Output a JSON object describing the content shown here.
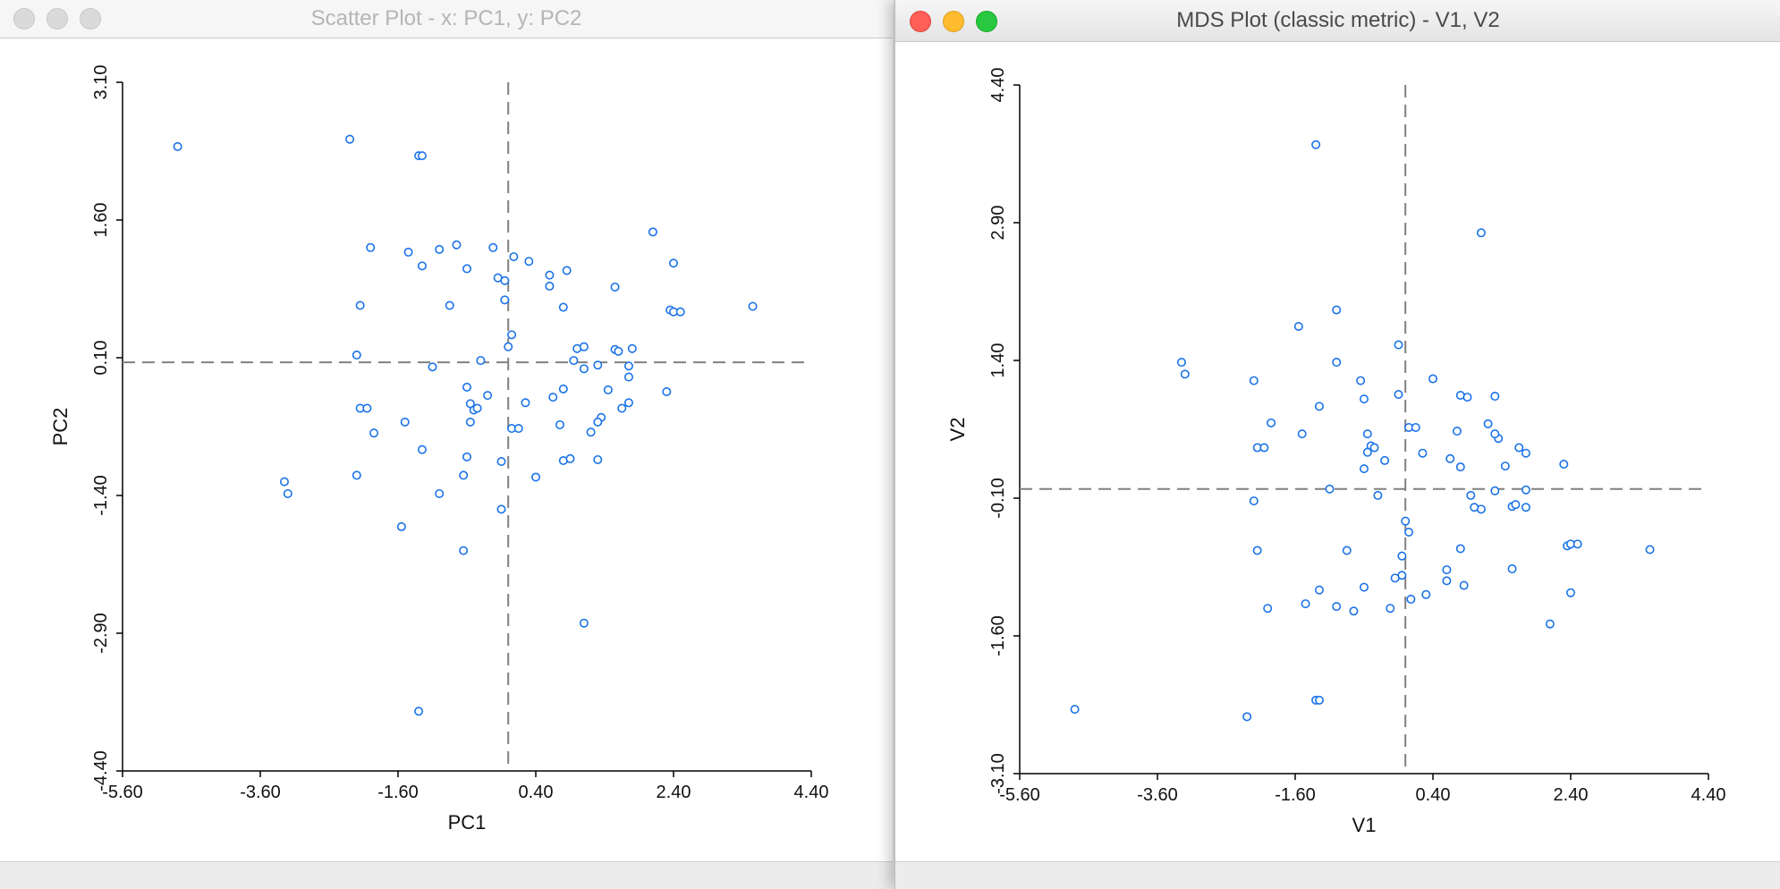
{
  "windows": {
    "left": {
      "title": "Scatter Plot - x: PC1, y: PC2"
    },
    "right": {
      "title": "MDS Plot (classic metric) - V1, V2"
    }
  },
  "colors": {
    "point": "#1a73e8",
    "axis": "#000000",
    "reference_line": "#808080"
  },
  "chart_data": [
    {
      "type": "scatter",
      "title": "Scatter Plot - x: PC1, y: PC2",
      "xlabel": "PC1",
      "ylabel": "PC2",
      "xlim": [
        -5.6,
        4.4
      ],
      "ylim": [
        -4.4,
        3.1
      ],
      "x_tick_labels": [
        "-5.60",
        "-3.60",
        "-1.60",
        "0.40",
        "2.40",
        "4.40"
      ],
      "y_tick_labels": [
        "-4.40",
        "-2.90",
        "-1.40",
        "0.10",
        "1.60",
        "3.10"
      ],
      "reference_lines": {
        "x": 0.0,
        "y": 0.05
      },
      "grid": false,
      "points": [
        [
          -4.8,
          2.4
        ],
        [
          -2.3,
          2.48
        ],
        [
          -1.3,
          2.3
        ],
        [
          -1.25,
          2.3
        ],
        [
          2.1,
          1.47
        ],
        [
          -2.0,
          1.3
        ],
        [
          -1.45,
          1.25
        ],
        [
          -1.0,
          1.28
        ],
        [
          -0.75,
          1.33
        ],
        [
          -0.22,
          1.3
        ],
        [
          0.08,
          1.2
        ],
        [
          0.3,
          1.15
        ],
        [
          2.4,
          1.13
        ],
        [
          -1.25,
          1.1
        ],
        [
          -0.6,
          1.07
        ],
        [
          -0.15,
          0.97
        ],
        [
          -0.05,
          0.94
        ],
        [
          0.6,
          1.0
        ],
        [
          0.85,
          1.05
        ],
        [
          0.6,
          0.88
        ],
        [
          1.55,
          0.87
        ],
        [
          -2.15,
          0.67
        ],
        [
          -0.85,
          0.67
        ],
        [
          -0.05,
          0.73
        ],
        [
          0.8,
          0.65
        ],
        [
          2.35,
          0.62
        ],
        [
          2.4,
          0.6
        ],
        [
          2.5,
          0.6
        ],
        [
          3.55,
          0.66
        ],
        [
          0.05,
          0.35
        ],
        [
          0.0,
          0.22
        ],
        [
          1.0,
          0.2
        ],
        [
          1.1,
          0.22
        ],
        [
          1.55,
          0.19
        ],
        [
          1.6,
          0.17
        ],
        [
          1.8,
          0.2
        ],
        [
          -2.2,
          0.13
        ],
        [
          0.95,
          0.07
        ],
        [
          -0.4,
          0.07
        ],
        [
          1.3,
          0.02
        ],
        [
          -1.1,
          0.0
        ],
        [
          1.1,
          -0.02
        ],
        [
          1.75,
          0.01
        ],
        [
          1.75,
          -0.11
        ],
        [
          -0.6,
          -0.22
        ],
        [
          0.8,
          -0.24
        ],
        [
          1.45,
          -0.25
        ],
        [
          2.3,
          -0.27
        ],
        [
          -0.3,
          -0.31
        ],
        [
          0.65,
          -0.33
        ],
        [
          -0.55,
          -0.4
        ],
        [
          -2.15,
          -0.45
        ],
        [
          -2.05,
          -0.45
        ],
        [
          0.25,
          -0.39
        ],
        [
          -0.5,
          -0.47
        ],
        [
          -0.45,
          -0.45
        ],
        [
          1.65,
          -0.45
        ],
        [
          1.75,
          -0.39
        ],
        [
          1.35,
          -0.55
        ],
        [
          1.3,
          -0.6
        ],
        [
          -1.5,
          -0.6
        ],
        [
          -0.55,
          -0.6
        ],
        [
          0.75,
          -0.63
        ],
        [
          0.05,
          -0.67
        ],
        [
          0.15,
          -0.67
        ],
        [
          -1.95,
          -0.72
        ],
        [
          1.2,
          -0.71
        ],
        [
          -1.25,
          -0.9
        ],
        [
          -0.6,
          -0.98
        ],
        [
          0.8,
          -1.02
        ],
        [
          0.9,
          -1.0
        ],
        [
          1.3,
          -1.01
        ],
        [
          -0.1,
          -1.03
        ],
        [
          -2.2,
          -1.18
        ],
        [
          -0.65,
          -1.18
        ],
        [
          0.4,
          -1.2
        ],
        [
          -1.0,
          -1.38
        ],
        [
          -3.25,
          -1.25
        ],
        [
          -3.2,
          -1.38
        ],
        [
          -0.1,
          -1.55
        ],
        [
          -1.55,
          -1.74
        ],
        [
          -0.65,
          -2.0
        ],
        [
          1.1,
          -2.79
        ],
        [
          -1.3,
          -3.75
        ]
      ]
    },
    {
      "type": "scatter",
      "title": "MDS Plot (classic metric) - V1, V2",
      "xlabel": "V1",
      "ylabel": "V2",
      "xlim": [
        -5.6,
        4.4
      ],
      "ylim": [
        -3.1,
        4.4
      ],
      "x_tick_labels": [
        "-5.60",
        "-3.60",
        "-1.60",
        "0.40",
        "2.40",
        "4.40"
      ],
      "y_tick_labels": [
        "-3.10",
        "-1.60",
        "-0.10",
        "1.40",
        "2.90",
        "4.40"
      ],
      "reference_lines": {
        "x": 0.0,
        "y": 0.0
      },
      "grid": false,
      "points": [
        [
          -1.3,
          3.75
        ],
        [
          1.1,
          2.79
        ],
        [
          -1.0,
          1.95
        ],
        [
          -1.55,
          1.77
        ],
        [
          -0.1,
          1.57
        ],
        [
          -3.25,
          1.38
        ],
        [
          -3.2,
          1.25
        ],
        [
          -1.0,
          1.38
        ],
        [
          -2.2,
          1.18
        ],
        [
          -0.65,
          1.18
        ],
        [
          0.4,
          1.2
        ],
        [
          -0.1,
          1.03
        ],
        [
          0.8,
          1.02
        ],
        [
          0.9,
          1.0
        ],
        [
          1.3,
          1.01
        ],
        [
          -1.25,
          0.9
        ],
        [
          -0.6,
          0.98
        ],
        [
          -1.95,
          0.72
        ],
        [
          1.2,
          0.71
        ],
        [
          0.05,
          0.67
        ],
        [
          0.15,
          0.67
        ],
        [
          0.75,
          0.63
        ],
        [
          -1.5,
          0.6
        ],
        [
          -0.55,
          0.6
        ],
        [
          1.35,
          0.55
        ],
        [
          1.3,
          0.6
        ],
        [
          1.65,
          0.45
        ],
        [
          1.75,
          0.39
        ],
        [
          -2.15,
          0.45
        ],
        [
          -2.05,
          0.45
        ],
        [
          -0.5,
          0.47
        ],
        [
          -0.45,
          0.45
        ],
        [
          0.25,
          0.39
        ],
        [
          0.65,
          0.33
        ],
        [
          -0.3,
          0.31
        ],
        [
          0.8,
          0.24
        ],
        [
          1.45,
          0.25
        ],
        [
          2.3,
          0.27
        ],
        [
          -0.55,
          0.4
        ],
        [
          -0.6,
          0.22
        ],
        [
          1.55,
          -0.19
        ],
        [
          1.75,
          -0.2
        ],
        [
          1.75,
          -0.01
        ],
        [
          1.3,
          -0.02
        ],
        [
          1.1,
          -0.22
        ],
        [
          1.0,
          -0.2
        ],
        [
          0.95,
          -0.07
        ],
        [
          -1.1,
          0.0
        ],
        [
          -0.4,
          -0.07
        ],
        [
          1.6,
          -0.17
        ],
        [
          -2.2,
          -0.13
        ],
        [
          0.0,
          -0.35
        ],
        [
          0.05,
          -0.47
        ],
        [
          0.6,
          -0.88
        ],
        [
          1.55,
          -0.87
        ],
        [
          -2.15,
          -0.67
        ],
        [
          -0.85,
          -0.67
        ],
        [
          -0.05,
          -0.73
        ],
        [
          0.8,
          -0.65
        ],
        [
          2.35,
          -0.62
        ],
        [
          2.4,
          -0.6
        ],
        [
          2.5,
          -0.6
        ],
        [
          3.55,
          -0.66
        ],
        [
          -0.05,
          -0.94
        ],
        [
          -0.15,
          -0.97
        ],
        [
          0.3,
          -1.15
        ],
        [
          0.6,
          -1.0
        ],
        [
          0.85,
          -1.05
        ],
        [
          -0.22,
          -1.3
        ],
        [
          0.08,
          -1.2
        ],
        [
          -0.6,
          -1.07
        ],
        [
          2.4,
          -1.13
        ],
        [
          -1.25,
          -1.1
        ],
        [
          -1.45,
          -1.25
        ],
        [
          -1.0,
          -1.28
        ],
        [
          -0.75,
          -1.33
        ],
        [
          -2.0,
          -1.3
        ],
        [
          2.1,
          -1.47
        ],
        [
          -1.3,
          -2.3
        ],
        [
          -1.25,
          -2.3
        ],
        [
          -2.3,
          -2.48
        ],
        [
          -4.8,
          -2.4
        ]
      ]
    }
  ]
}
